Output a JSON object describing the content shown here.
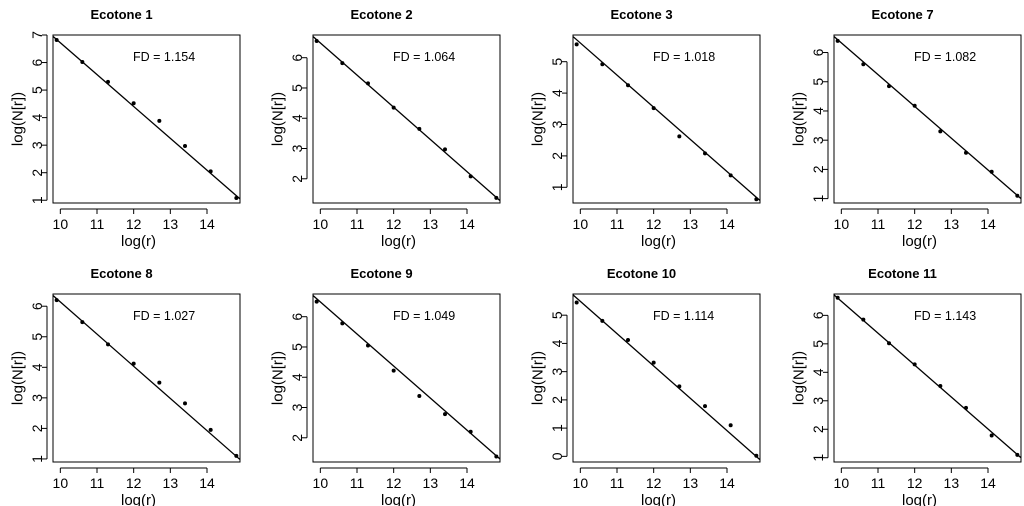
{
  "chart_data": [
    {
      "type": "scatter",
      "title": "Ecotone 1",
      "annotation": "FD = 1.154",
      "xlabel": "log(r)",
      "ylabel": "log(N[r])",
      "xlim": [
        9.8,
        14.9
      ],
      "ylim": [
        0.9,
        7.0
      ],
      "xticks": [
        10,
        11,
        12,
        13,
        14
      ],
      "yticks": [
        1,
        2,
        3,
        4,
        5,
        6,
        7
      ],
      "x": [
        9.9,
        10.6,
        11.3,
        12.0,
        12.7,
        13.4,
        14.1,
        14.8
      ],
      "y": [
        6.82,
        6.02,
        5.3,
        4.52,
        3.88,
        2.97,
        2.05,
        1.08
      ],
      "fit_line": {
        "x": [
          9.8,
          14.9
        ],
        "y": [
          6.95,
          1.05
        ]
      }
    },
    {
      "type": "scatter",
      "title": "Ecotone 2",
      "annotation": "FD = 1.064",
      "xlabel": "log(r)",
      "ylabel": "log(N[r])",
      "xlim": [
        9.8,
        14.9
      ],
      "ylim": [
        1.2,
        6.75
      ],
      "xticks": [
        10,
        11,
        12,
        13,
        14
      ],
      "yticks": [
        2,
        3,
        4,
        5,
        6
      ],
      "x": [
        9.9,
        10.6,
        11.3,
        12.0,
        12.7,
        13.4,
        14.1,
        14.8
      ],
      "y": [
        6.55,
        5.82,
        5.15,
        4.35,
        3.65,
        2.97,
        2.08,
        1.37
      ],
      "fit_line": {
        "x": [
          9.8,
          14.9
        ],
        "y": [
          6.7,
          1.28
        ]
      }
    },
    {
      "type": "scatter",
      "title": "Ecotone 3",
      "annotation": "FD = 1.018",
      "xlabel": "log(r)",
      "ylabel": "log(N[r])",
      "xlim": [
        9.8,
        14.9
      ],
      "ylim": [
        0.5,
        5.85
      ],
      "xticks": [
        10,
        11,
        12,
        13,
        14
      ],
      "yticks": [
        1,
        2,
        3,
        4,
        5
      ],
      "x": [
        9.9,
        10.6,
        11.3,
        12.0,
        12.7,
        13.4,
        14.1,
        14.8
      ],
      "y": [
        5.55,
        4.92,
        4.25,
        3.52,
        2.62,
        2.08,
        1.38,
        0.62
      ],
      "fit_line": {
        "x": [
          9.8,
          14.9
        ],
        "y": [
          5.8,
          0.58
        ]
      }
    },
    {
      "type": "scatter",
      "title": "Ecotone 7",
      "annotation": "FD = 1.082",
      "xlabel": "log(r)",
      "ylabel": "log(N[r])",
      "xlim": [
        9.8,
        14.9
      ],
      "ylim": [
        0.85,
        6.6
      ],
      "xticks": [
        10,
        11,
        12,
        13,
        14
      ],
      "yticks": [
        1,
        2,
        3,
        4,
        5,
        6
      ],
      "x": [
        9.9,
        10.6,
        11.3,
        12.0,
        12.7,
        13.4,
        14.1,
        14.8
      ],
      "y": [
        6.4,
        5.6,
        4.85,
        4.18,
        3.3,
        2.57,
        1.92,
        1.1
      ],
      "fit_line": {
        "x": [
          9.8,
          14.9
        ],
        "y": [
          6.55,
          1.0
        ]
      }
    },
    {
      "type": "scatter",
      "title": "Ecotone 8",
      "annotation": "FD = 1.027",
      "xlabel": "log(r)",
      "ylabel": "log(N[r])",
      "xlim": [
        9.8,
        14.9
      ],
      "ylim": [
        0.9,
        6.4
      ],
      "xticks": [
        10,
        11,
        12,
        13,
        14
      ],
      "yticks": [
        1,
        2,
        3,
        4,
        5,
        6
      ],
      "x": [
        9.9,
        10.6,
        11.3,
        12.0,
        12.7,
        13.4,
        14.1,
        14.8
      ],
      "y": [
        6.2,
        5.48,
        4.75,
        4.12,
        3.5,
        2.82,
        1.95,
        1.1
      ],
      "fit_line": {
        "x": [
          9.8,
          14.9
        ],
        "y": [
          6.35,
          0.98
        ]
      }
    },
    {
      "type": "scatter",
      "title": "Ecotone 9",
      "annotation": "FD =  1.049",
      "xlabel": "log(r)",
      "ylabel": "log(N[r])",
      "xlim": [
        9.8,
        14.9
      ],
      "ylim": [
        1.2,
        6.75
      ],
      "xticks": [
        10,
        11,
        12,
        13,
        14
      ],
      "yticks": [
        2,
        3,
        4,
        5,
        6
      ],
      "x": [
        9.9,
        10.6,
        11.3,
        12.0,
        12.7,
        13.4,
        14.1,
        14.8
      ],
      "y": [
        6.5,
        5.78,
        5.05,
        4.22,
        3.38,
        2.78,
        2.2,
        1.38
      ],
      "fit_line": {
        "x": [
          9.8,
          14.9
        ],
        "y": [
          6.7,
          1.3
        ]
      }
    },
    {
      "type": "scatter",
      "title": "Ecotone 10",
      "annotation": "FD = 1.114",
      "xlabel": "log(r)",
      "ylabel": "log(N[r])",
      "xlim": [
        9.8,
        14.9
      ],
      "ylim": [
        -0.2,
        5.75
      ],
      "xticks": [
        10,
        11,
        12,
        13,
        14
      ],
      "yticks": [
        0,
        1,
        2,
        3,
        4,
        5
      ],
      "x": [
        9.9,
        10.6,
        11.3,
        12.0,
        12.7,
        13.4,
        14.1,
        14.8
      ],
      "y": [
        5.45,
        4.8,
        4.12,
        3.32,
        2.48,
        1.78,
        1.1,
        0.02
      ],
      "fit_line": {
        "x": [
          9.8,
          14.9
        ],
        "y": [
          5.72,
          -0.12
        ]
      }
    },
    {
      "type": "scatter",
      "title": "Ecotone 11",
      "annotation": "FD = 1.143",
      "xlabel": "log(r)",
      "ylabel": "log(N[r])",
      "xlim": [
        9.8,
        14.9
      ],
      "ylim": [
        0.85,
        6.75
      ],
      "xticks": [
        10,
        11,
        12,
        13,
        14
      ],
      "yticks": [
        1,
        2,
        3,
        4,
        5,
        6
      ],
      "x": [
        9.9,
        10.6,
        11.3,
        12.0,
        12.7,
        13.4,
        14.1,
        14.8
      ],
      "y": [
        6.62,
        5.85,
        5.02,
        4.28,
        3.52,
        2.75,
        1.78,
        1.1
      ],
      "fit_line": {
        "x": [
          9.8,
          14.9
        ],
        "y": [
          6.72,
          1.0
        ]
      }
    }
  ]
}
